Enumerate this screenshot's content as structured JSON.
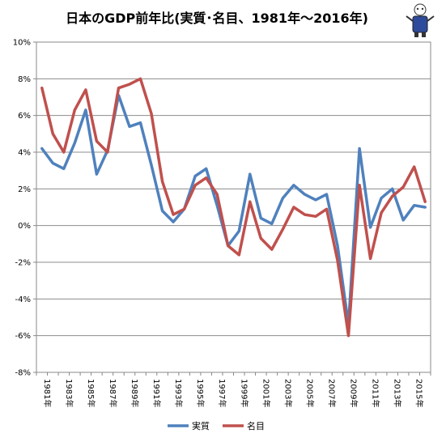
{
  "chart_data": {
    "type": "line",
    "title": "日本のGDP前年比(実質･名目、1981年～2016年)",
    "x": [
      1981,
      1982,
      1983,
      1984,
      1985,
      1986,
      1987,
      1988,
      1989,
      1990,
      1991,
      1992,
      1993,
      1994,
      1995,
      1996,
      1997,
      1998,
      1999,
      2000,
      2001,
      2002,
      2003,
      2004,
      2005,
      2006,
      2007,
      2008,
      2009,
      2010,
      2011,
      2012,
      2013,
      2014,
      2015,
      2016
    ],
    "x_tick_labels": [
      "1981年",
      "1983年",
      "1985年",
      "1987年",
      "1989年",
      "1991年",
      "1993年",
      "1995年",
      "1997年",
      "1999年",
      "2001年",
      "2003年",
      "2005年",
      "2007年",
      "2009年",
      "2011年",
      "2013年",
      "2015年"
    ],
    "y_tick_labels": [
      "10%",
      "8%",
      "6%",
      "4%",
      "2%",
      "0%",
      "-2%",
      "-4%",
      "-6%",
      "-8%"
    ],
    "ylim": [
      -8,
      10
    ],
    "grid": true,
    "legend_position": "bottom",
    "series": [
      {
        "name": "実質",
        "color": "#4f81bd",
        "values": [
          4.2,
          3.4,
          3.1,
          4.5,
          6.3,
          2.8,
          4.1,
          7.1,
          5.4,
          5.6,
          3.3,
          0.8,
          0.2,
          0.9,
          2.7,
          3.1,
          1.1,
          -1.1,
          -0.3,
          2.8,
          0.4,
          0.1,
          1.5,
          2.2,
          1.7,
          1.4,
          1.7,
          -1.1,
          -5.4,
          4.2,
          -0.1,
          1.5,
          2.0,
          0.3,
          1.1,
          1.0
        ]
      },
      {
        "name": "名目",
        "color": "#c0504d",
        "values": [
          7.5,
          5.0,
          4.0,
          6.3,
          7.4,
          4.6,
          4.0,
          7.5,
          7.7,
          8.0,
          6.1,
          2.4,
          0.6,
          0.9,
          2.2,
          2.6,
          1.7,
          -1.1,
          -1.6,
          1.3,
          -0.7,
          -1.3,
          -0.2,
          1.0,
          0.6,
          0.5,
          0.9,
          -1.9,
          -6.0,
          2.2,
          -1.8,
          0.7,
          1.6,
          2.1,
          3.2,
          1.3
        ]
      }
    ]
  },
  "logo_alt": "mascot illustration"
}
